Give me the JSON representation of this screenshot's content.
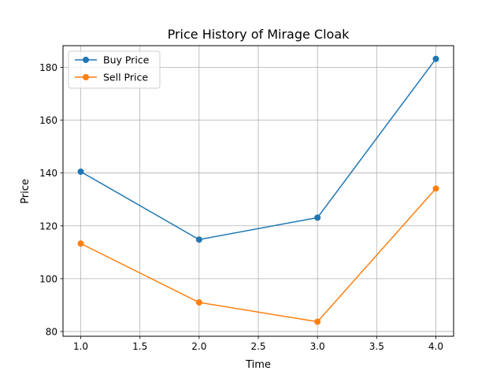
{
  "chart_data": {
    "type": "line",
    "title": "Price History of Mirage Cloak",
    "xlabel": "Time",
    "ylabel": "Price",
    "x": [
      1.0,
      2.0,
      3.0,
      4.0
    ],
    "xlim": [
      0.85,
      4.15
    ],
    "ylim": [
      78.2,
      188.2
    ],
    "xticks": [
      1.0,
      1.5,
      2.0,
      2.5,
      3.0,
      3.5,
      4.0
    ],
    "xtick_labels": [
      "1.0",
      "1.5",
      "2.0",
      "2.5",
      "3.0",
      "3.5",
      "4.0"
    ],
    "yticks": [
      80,
      100,
      120,
      140,
      160,
      180
    ],
    "ytick_labels": [
      "80",
      "100",
      "120",
      "140",
      "160",
      "180"
    ],
    "grid": true,
    "legend_position": "upper left",
    "series": [
      {
        "name": "Buy Price",
        "color": "#1f77b4",
        "marker": "circle",
        "values": [
          140.5,
          114.8,
          123.1,
          183.2
        ]
      },
      {
        "name": "Sell Price",
        "color": "#ff7f0e",
        "marker": "circle",
        "values": [
          113.3,
          91.0,
          83.7,
          134.1
        ]
      }
    ]
  }
}
